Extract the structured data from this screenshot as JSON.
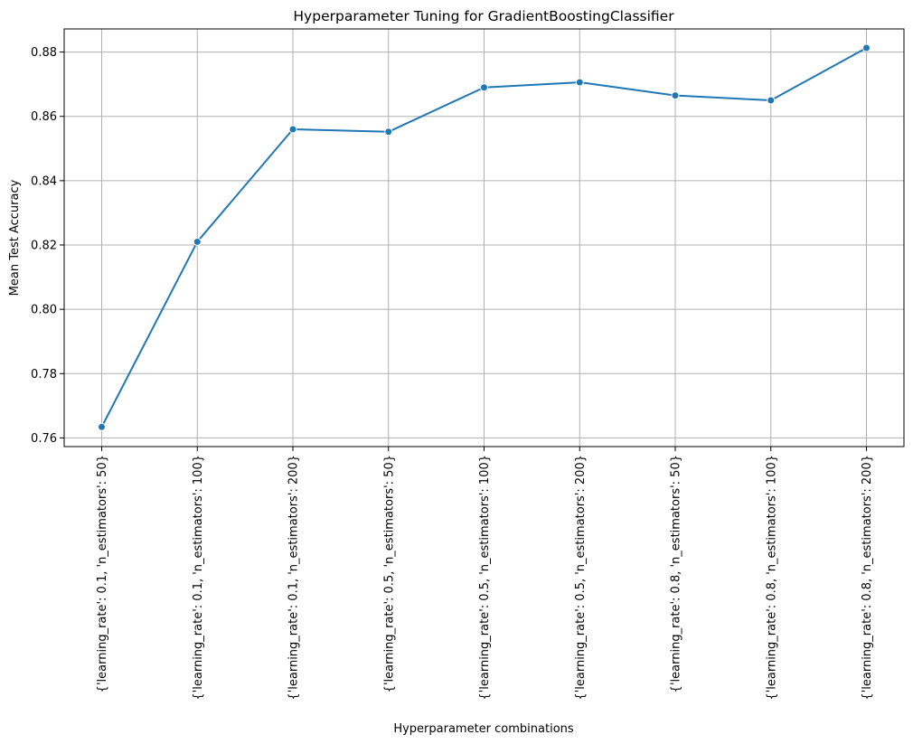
{
  "chart_data": {
    "type": "line",
    "title": "Hyperparameter Tuning for GradientBoostingClassifier",
    "xlabel": "Hyperparameter combinations",
    "ylabel": "Mean Test Accuracy",
    "categories": [
      "{'learning_rate': 0.1, 'n_estimators': 50}",
      "{'learning_rate': 0.1, 'n_estimators': 100}",
      "{'learning_rate': 0.1, 'n_estimators': 200}",
      "{'learning_rate': 0.5, 'n_estimators': 50}",
      "{'learning_rate': 0.5, 'n_estimators': 100}",
      "{'learning_rate': 0.5, 'n_estimators': 200}",
      "{'learning_rate': 0.8, 'n_estimators': 50}",
      "{'learning_rate': 0.8, 'n_estimators': 100}",
      "{'learning_rate': 0.8, 'n_estimators': 200}"
    ],
    "values": [
      0.7634,
      0.821,
      0.856,
      0.8552,
      0.869,
      0.8706,
      0.8665,
      0.865,
      0.8813
    ],
    "ylim": [
      0.7573,
      0.8872
    ],
    "yticks": [
      0.76,
      0.78,
      0.8,
      0.82,
      0.84,
      0.86,
      0.88
    ],
    "ytick_labels": [
      "0.76",
      "0.78",
      "0.80",
      "0.82",
      "0.84",
      "0.86",
      "0.88"
    ],
    "grid": true,
    "line_color": "#1f77b4",
    "grid_color": "#b0b0b0",
    "marker": "circle"
  }
}
